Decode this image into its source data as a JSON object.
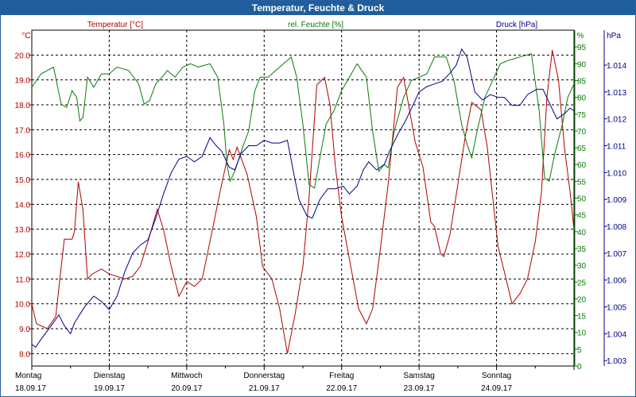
{
  "window": {
    "title": "Temperatur, Feuchte & Druck"
  },
  "colors": {
    "temperature": "#b00000",
    "humidity": "#0a7a0a",
    "pressure": "#00008b",
    "grid": "#000000",
    "titlebar": "#1f5e9c"
  },
  "chart_data": {
    "type": "line",
    "title": "Temperatur, Feuchte & Druck",
    "legend": {
      "temperature": "Temperatur [°C]",
      "humidity": "rel. Feuchte [%]",
      "pressure": "Druck [hPa]"
    },
    "axes": {
      "left": {
        "unit": "°C",
        "range": [
          7.5,
          21.0
        ],
        "ticks": [
          "8.0",
          "9.0",
          "10.0",
          "11.0",
          "12.0",
          "13.0",
          "14.0",
          "15.0",
          "16.0",
          "17.0",
          "18.0",
          "19.0",
          "20.0"
        ]
      },
      "middle": {
        "unit": "%",
        "range": [
          0,
          100
        ],
        "ticks": [
          "0",
          "5",
          "10",
          "15",
          "20",
          "25",
          "30",
          "35",
          "40",
          "45",
          "50",
          "55",
          "60",
          "65",
          "70",
          "75",
          "80",
          "85",
          "90",
          "95"
        ]
      },
      "right": {
        "unit": "hPa",
        "range": [
          1.0028,
          1.0153
        ],
        "ticks": [
          "1.003",
          "1.004",
          "1.005",
          "1.006",
          "1.007",
          "1.008",
          "1.009",
          "1.010",
          "1.011",
          "1.012",
          "1.013",
          "1.014"
        ]
      }
    },
    "x_range": [
      0,
      7
    ],
    "days": [
      {
        "name": "Montag",
        "date": "18.09.17"
      },
      {
        "name": "Dienstag",
        "date": "19.09.17"
      },
      {
        "name": "Mittwoch",
        "date": "20.09.17"
      },
      {
        "name": "Donnerstag",
        "date": "21.09.17"
      },
      {
        "name": "Freitag",
        "date": "22.09.17"
      },
      {
        "name": "Samstag",
        "date": "23.09.17"
      },
      {
        "name": "Sonntag",
        "date": "24.09.17"
      }
    ],
    "series": [
      {
        "name": "Temperatur [°C]",
        "axis": "left",
        "color": "#b00000",
        "points": [
          [
            0,
            10.0
          ],
          [
            0.06,
            9.2
          ],
          [
            0.2,
            9.0
          ],
          [
            0.31,
            9.5
          ],
          [
            0.38,
            11.5
          ],
          [
            0.42,
            12.6
          ],
          [
            0.52,
            12.6
          ],
          [
            0.55,
            12.9
          ],
          [
            0.6,
            14.9
          ],
          [
            0.66,
            13.8
          ],
          [
            0.72,
            11.0
          ],
          [
            0.78,
            11.2
          ],
          [
            0.9,
            11.4
          ],
          [
            1.0,
            11.2
          ],
          [
            1.2,
            11.0
          ],
          [
            1.3,
            11.1
          ],
          [
            1.4,
            11.5
          ],
          [
            1.5,
            12.5
          ],
          [
            1.62,
            13.8
          ],
          [
            1.7,
            13.0
          ],
          [
            1.8,
            11.5
          ],
          [
            1.9,
            10.3
          ],
          [
            2.0,
            10.9
          ],
          [
            2.1,
            10.7
          ],
          [
            2.2,
            11.0
          ],
          [
            2.3,
            12.5
          ],
          [
            2.45,
            14.8
          ],
          [
            2.55,
            16.2
          ],
          [
            2.6,
            15.8
          ],
          [
            2.65,
            16.3
          ],
          [
            2.78,
            15.2
          ],
          [
            2.9,
            13.5
          ],
          [
            2.98,
            11.5
          ],
          [
            3.1,
            11.0
          ],
          [
            3.2,
            9.8
          ],
          [
            3.3,
            8.0
          ],
          [
            3.4,
            9.6
          ],
          [
            3.5,
            11.5
          ],
          [
            3.58,
            14.3
          ],
          [
            3.68,
            18.8
          ],
          [
            3.78,
            19.1
          ],
          [
            3.85,
            18.0
          ],
          [
            3.92,
            15.5
          ],
          [
            4.0,
            13.5
          ],
          [
            4.1,
            11.8
          ],
          [
            4.22,
            9.8
          ],
          [
            4.32,
            9.2
          ],
          [
            4.4,
            9.8
          ],
          [
            4.5,
            12.2
          ],
          [
            4.6,
            14.8
          ],
          [
            4.72,
            18.7
          ],
          [
            4.8,
            19.1
          ],
          [
            4.87,
            17.9
          ],
          [
            4.95,
            16.5
          ],
          [
            5.05,
            15.5
          ],
          [
            5.15,
            13.3
          ],
          [
            5.2,
            13.1
          ],
          [
            5.28,
            12.0
          ],
          [
            5.32,
            11.9
          ],
          [
            5.4,
            12.8
          ],
          [
            5.5,
            14.8
          ],
          [
            5.6,
            16.8
          ],
          [
            5.68,
            18.1
          ],
          [
            5.8,
            17.8
          ],
          [
            5.88,
            16.3
          ],
          [
            5.95,
            14.3
          ],
          [
            6.02,
            12.3
          ],
          [
            6.1,
            11.3
          ],
          [
            6.2,
            10.0
          ],
          [
            6.3,
            10.4
          ],
          [
            6.4,
            11.0
          ],
          [
            6.5,
            12.5
          ],
          [
            6.58,
            14.5
          ],
          [
            6.65,
            18.3
          ],
          [
            6.72,
            20.2
          ],
          [
            6.8,
            19.0
          ],
          [
            6.88,
            16.2
          ],
          [
            6.95,
            14.5
          ],
          [
            7.0,
            13.0
          ]
        ]
      },
      {
        "name": "rel. Feuchte [%]",
        "axis": "middle",
        "color": "#0a7a0a",
        "points": [
          [
            0,
            83
          ],
          [
            0.12,
            87
          ],
          [
            0.28,
            89
          ],
          [
            0.38,
            78
          ],
          [
            0.45,
            77
          ],
          [
            0.52,
            82
          ],
          [
            0.58,
            80
          ],
          [
            0.62,
            73
          ],
          [
            0.66,
            74
          ],
          [
            0.72,
            86
          ],
          [
            0.8,
            83
          ],
          [
            0.9,
            87
          ],
          [
            1.0,
            87
          ],
          [
            1.1,
            89
          ],
          [
            1.25,
            88
          ],
          [
            1.38,
            84
          ],
          [
            1.45,
            78
          ],
          [
            1.52,
            79
          ],
          [
            1.6,
            84
          ],
          [
            1.68,
            86
          ],
          [
            1.75,
            88
          ],
          [
            1.85,
            86
          ],
          [
            1.95,
            89
          ],
          [
            2.05,
            90
          ],
          [
            2.15,
            89
          ],
          [
            2.3,
            90
          ],
          [
            2.4,
            86
          ],
          [
            2.48,
            72
          ],
          [
            2.52,
            60
          ],
          [
            2.56,
            55
          ],
          [
            2.62,
            58
          ],
          [
            2.72,
            65
          ],
          [
            2.8,
            70
          ],
          [
            2.88,
            82
          ],
          [
            2.95,
            86
          ],
          [
            3.05,
            86
          ],
          [
            3.15,
            88
          ],
          [
            3.25,
            90
          ],
          [
            3.35,
            92
          ],
          [
            3.42,
            86
          ],
          [
            3.5,
            72
          ],
          [
            3.58,
            54
          ],
          [
            3.65,
            53
          ],
          [
            3.72,
            62
          ],
          [
            3.8,
            72
          ],
          [
            3.9,
            76
          ],
          [
            4.0,
            82
          ],
          [
            4.1,
            86
          ],
          [
            4.2,
            90
          ],
          [
            4.32,
            86
          ],
          [
            4.4,
            70
          ],
          [
            4.48,
            58
          ],
          [
            4.55,
            60
          ],
          [
            4.6,
            59
          ],
          [
            4.68,
            70
          ],
          [
            4.8,
            80
          ],
          [
            4.9,
            85
          ],
          [
            5.0,
            86
          ],
          [
            5.1,
            87
          ],
          [
            5.2,
            92
          ],
          [
            5.35,
            92
          ],
          [
            5.45,
            85
          ],
          [
            5.55,
            72
          ],
          [
            5.62,
            66
          ],
          [
            5.68,
            62
          ],
          [
            5.75,
            70
          ],
          [
            5.85,
            80
          ],
          [
            5.95,
            85
          ],
          [
            6.05,
            90
          ],
          [
            6.15,
            91
          ],
          [
            6.3,
            92
          ],
          [
            6.45,
            93
          ],
          [
            6.55,
            76
          ],
          [
            6.62,
            56
          ],
          [
            6.68,
            55
          ],
          [
            6.75,
            63
          ],
          [
            6.85,
            72
          ],
          [
            6.92,
            80
          ],
          [
            7.0,
            84
          ]
        ]
      },
      {
        "name": "Druck [hPa]",
        "axis": "right",
        "color": "#00008b",
        "points": [
          [
            0,
            1.0036
          ],
          [
            0.05,
            1.0035
          ],
          [
            0.12,
            1.0038
          ],
          [
            0.25,
            1.0043
          ],
          [
            0.35,
            1.0047
          ],
          [
            0.42,
            1.0043
          ],
          [
            0.5,
            1.004
          ],
          [
            0.55,
            1.0044
          ],
          [
            0.68,
            1.005
          ],
          [
            0.8,
            1.0054
          ],
          [
            0.9,
            1.0052
          ],
          [
            1.0,
            1.0049
          ],
          [
            1.1,
            1.0054
          ],
          [
            1.2,
            1.0063
          ],
          [
            1.3,
            1.007
          ],
          [
            1.4,
            1.0073
          ],
          [
            1.5,
            1.0075
          ],
          [
            1.6,
            1.0083
          ],
          [
            1.7,
            1.0092
          ],
          [
            1.8,
            1.01
          ],
          [
            1.9,
            1.0105
          ],
          [
            2.0,
            1.0106
          ],
          [
            2.1,
            1.0104
          ],
          [
            2.2,
            1.0106
          ],
          [
            2.3,
            1.0113
          ],
          [
            2.38,
            1.011
          ],
          [
            2.45,
            1.0108
          ],
          [
            2.55,
            1.0102
          ],
          [
            2.62,
            1.0101
          ],
          [
            2.7,
            1.0107
          ],
          [
            2.8,
            1.011
          ],
          [
            2.9,
            1.011
          ],
          [
            3.0,
            1.0112
          ],
          [
            3.1,
            1.0111
          ],
          [
            3.2,
            1.0111
          ],
          [
            3.3,
            1.0112
          ],
          [
            3.38,
            1.01
          ],
          [
            3.45,
            1.009
          ],
          [
            3.55,
            1.0084
          ],
          [
            3.62,
            1.0083
          ],
          [
            3.72,
            1.009
          ],
          [
            3.82,
            1.0094
          ],
          [
            3.92,
            1.0094
          ],
          [
            4.02,
            1.0095
          ],
          [
            4.1,
            1.0092
          ],
          [
            4.2,
            1.0095
          ],
          [
            4.28,
            1.0101
          ],
          [
            4.35,
            1.0104
          ],
          [
            4.45,
            1.0101
          ],
          [
            4.55,
            1.0103
          ],
          [
            4.62,
            1.0108
          ],
          [
            4.72,
            1.0114
          ],
          [
            4.82,
            1.0119
          ],
          [
            4.92,
            1.0125
          ],
          [
            5.0,
            1.013
          ],
          [
            5.1,
            1.0132
          ],
          [
            5.2,
            1.0133
          ],
          [
            5.3,
            1.0134
          ],
          [
            5.4,
            1.0137
          ],
          [
            5.48,
            1.014
          ],
          [
            5.55,
            1.0146
          ],
          [
            5.62,
            1.0143
          ],
          [
            5.72,
            1.013
          ],
          [
            5.82,
            1.0127
          ],
          [
            5.92,
            1.0129
          ],
          [
            6.02,
            1.0128
          ],
          [
            6.1,
            1.0128
          ],
          [
            6.2,
            1.0125
          ],
          [
            6.3,
            1.0125
          ],
          [
            6.4,
            1.0129
          ],
          [
            6.52,
            1.0131
          ],
          [
            6.6,
            1.0131
          ],
          [
            6.68,
            1.0126
          ],
          [
            6.78,
            1.012
          ],
          [
            6.88,
            1.0122
          ],
          [
            6.95,
            1.0124
          ],
          [
            7.0,
            1.0123
          ]
        ]
      }
    ]
  }
}
